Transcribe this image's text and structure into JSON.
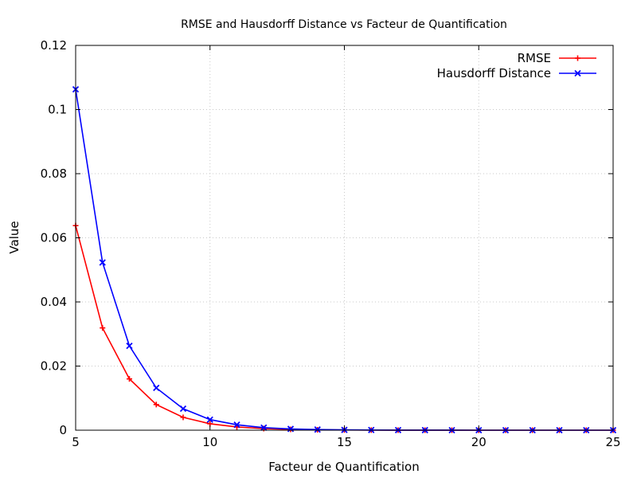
{
  "chart_data": {
    "type": "line",
    "title": "RMSE and Hausdorff Distance vs Facteur de Quantification",
    "xlabel": "Facteur de Quantification",
    "ylabel": "Value",
    "xlim": [
      5,
      25
    ],
    "ylim": [
      0,
      0.12
    ],
    "xticks": [
      5,
      10,
      15,
      20,
      25
    ],
    "yticks": [
      0,
      0.02,
      0.04,
      0.06,
      0.08,
      0.1,
      0.12
    ],
    "xtick_labels": [
      "5",
      "10",
      "15",
      "20",
      "25"
    ],
    "ytick_labels": [
      "0",
      "0.02",
      "0.04",
      "0.06",
      "0.08",
      "0.1",
      "0.12"
    ],
    "grid": true,
    "legend_position": "top-right",
    "x": [
      5,
      6,
      7,
      8,
      9,
      10,
      11,
      12,
      13,
      14,
      15,
      16,
      17,
      18,
      19,
      20,
      21,
      22,
      23,
      24,
      25
    ],
    "series": [
      {
        "name": "RMSE",
        "color": "#ff0000",
        "marker": "plus",
        "values": [
          0.0638,
          0.0319,
          0.016,
          0.008,
          0.004,
          0.002,
          0.001,
          0.0005,
          0.00025,
          0.00012,
          6e-05,
          3e-05,
          1.5e-05,
          1e-05,
          5e-06,
          3e-06,
          2e-06,
          1e-06,
          5e-07,
          3e-07,
          2e-07
        ]
      },
      {
        "name": "Hausdorff Distance",
        "color": "#0000ff",
        "marker": "cross",
        "values": [
          0.1063,
          0.0523,
          0.0263,
          0.0132,
          0.0067,
          0.0033,
          0.0017,
          0.0008,
          0.0004,
          0.0002,
          0.0001,
          5e-05,
          2.5e-05,
          1.3e-05,
          7e-06,
          3e-06,
          2e-06,
          1e-06,
          5e-07,
          3e-07,
          2e-07
        ]
      }
    ]
  }
}
